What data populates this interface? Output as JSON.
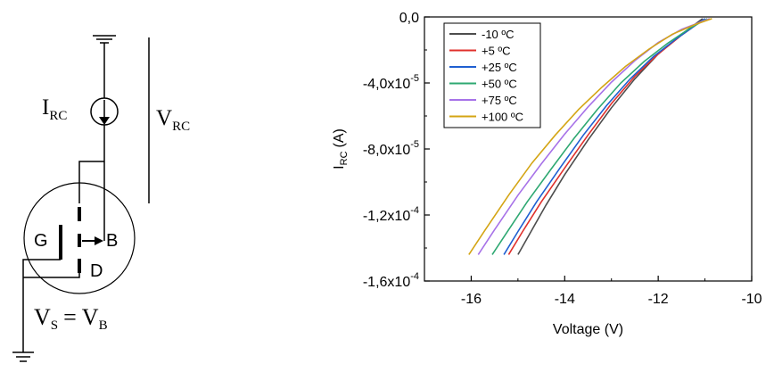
{
  "circuit": {
    "current_label": "I",
    "current_sub": "RC",
    "voltage_label": "V",
    "voltage_sub": "RC",
    "gate_label": "G",
    "body_label": "B",
    "drain_label": "D",
    "source_eq_v1": "V",
    "source_eq_s": "S",
    "source_eq_eq": "=",
    "source_eq_v2": "V",
    "source_eq_b": "B"
  },
  "chart_data": {
    "type": "line",
    "title": "",
    "xlabel": "Voltage (V)",
    "ylabel_main": "I",
    "ylabel_sub": "RC",
    "ylabel_unit": "(A)",
    "xlim": [
      -17,
      -10
    ],
    "ylim": [
      -0.00016,
      0.0
    ],
    "xticks": [
      -16,
      -14,
      -12,
      -10
    ],
    "xtick_labels": [
      "-16",
      "-14",
      "-12",
      "-10"
    ],
    "yticks": [
      0.0,
      -4e-05,
      -8e-05,
      -0.00012,
      -0.00016
    ],
    "ytick_labels": [
      {
        "main": "0,0",
        "exp": ""
      },
      {
        "main": "-4,0x10",
        "exp": "-5"
      },
      {
        "main": "-8,0x10",
        "exp": "-5"
      },
      {
        "main": "-1,2x10",
        "exp": "-4"
      },
      {
        "main": "-1,6x10",
        "exp": "-4"
      }
    ],
    "grid": false,
    "legend_position": "top-left",
    "series": [
      {
        "name": "-10  ºC",
        "color": "#4d4d4d",
        "x": [
          -15.0,
          -14.7,
          -14.4,
          -14.0,
          -13.5,
          -13.0,
          -12.5,
          -12.0,
          -11.5,
          -11.05
        ],
        "y": [
          -0.000144,
          -0.000129,
          -0.000114,
          -9.55e-05,
          -7.45e-05,
          -5.5e-05,
          -3.75e-05,
          -2.25e-05,
          -1.05e-05,
          -1e-06
        ]
      },
      {
        "name": "+5  ºC",
        "color": "#e0302c",
        "x": [
          -15.2,
          -14.9,
          -14.5,
          -14.0,
          -13.5,
          -13.0,
          -12.5,
          -12.0,
          -11.5,
          -11.0
        ],
        "y": [
          -0.000144,
          -0.00013,
          -0.000112,
          -9.15e-05,
          -7.15e-05,
          -5.25e-05,
          -3.6e-05,
          -2.25e-05,
          -1.1e-05,
          -1e-06
        ]
      },
      {
        "name": "+25  ºC",
        "color": "#1f5fd1",
        "x": [
          -15.3,
          -15.0,
          -14.6,
          -14.1,
          -13.6,
          -13.1,
          -12.6,
          -12.1,
          -11.6,
          -11.0
        ],
        "y": [
          -0.000144,
          -0.00013,
          -0.000112,
          -9.15e-05,
          -7.15e-05,
          -5.35e-05,
          -3.75e-05,
          -2.4e-05,
          -1.3e-05,
          -1e-06
        ]
      },
      {
        "name": "+50  ºC",
        "color": "#2ea872",
        "x": [
          -15.55,
          -15.2,
          -14.8,
          -14.3,
          -13.8,
          -13.3,
          -12.8,
          -12.3,
          -11.8,
          -11.3,
          -10.95
        ],
        "y": [
          -0.000144,
          -0.000129,
          -0.000112,
          -9.25e-05,
          -7.35e-05,
          -5.6e-05,
          -4e-05,
          -2.7e-05,
          -1.6e-05,
          -6.5e-06,
          -1e-06
        ]
      },
      {
        "name": "+75  ºC",
        "color": "#a772e8",
        "x": [
          -15.85,
          -15.5,
          -15.0,
          -14.5,
          -14.0,
          -13.5,
          -13.0,
          -12.5,
          -12.0,
          -11.5,
          -10.9
        ],
        "y": [
          -0.000144,
          -0.000129,
          -0.000108,
          -8.9e-05,
          -7.1e-05,
          -5.45e-05,
          -3.95e-05,
          -2.65e-05,
          -1.55e-05,
          -7.5e-06,
          -1e-06
        ]
      },
      {
        "name": "+100  ºC",
        "color": "#d4a514",
        "x": [
          -16.05,
          -15.7,
          -15.2,
          -14.7,
          -14.2,
          -13.7,
          -13.2,
          -12.7,
          -12.2,
          -11.7,
          -11.2,
          -10.85
        ],
        "y": [
          -0.000144,
          -0.000129,
          -0.000108,
          -8.85e-05,
          -7.15e-05,
          -5.6e-05,
          -4.25e-05,
          -3e-05,
          -1.95e-05,
          -1.05e-05,
          -4.5e-06,
          -1e-06
        ]
      }
    ]
  }
}
